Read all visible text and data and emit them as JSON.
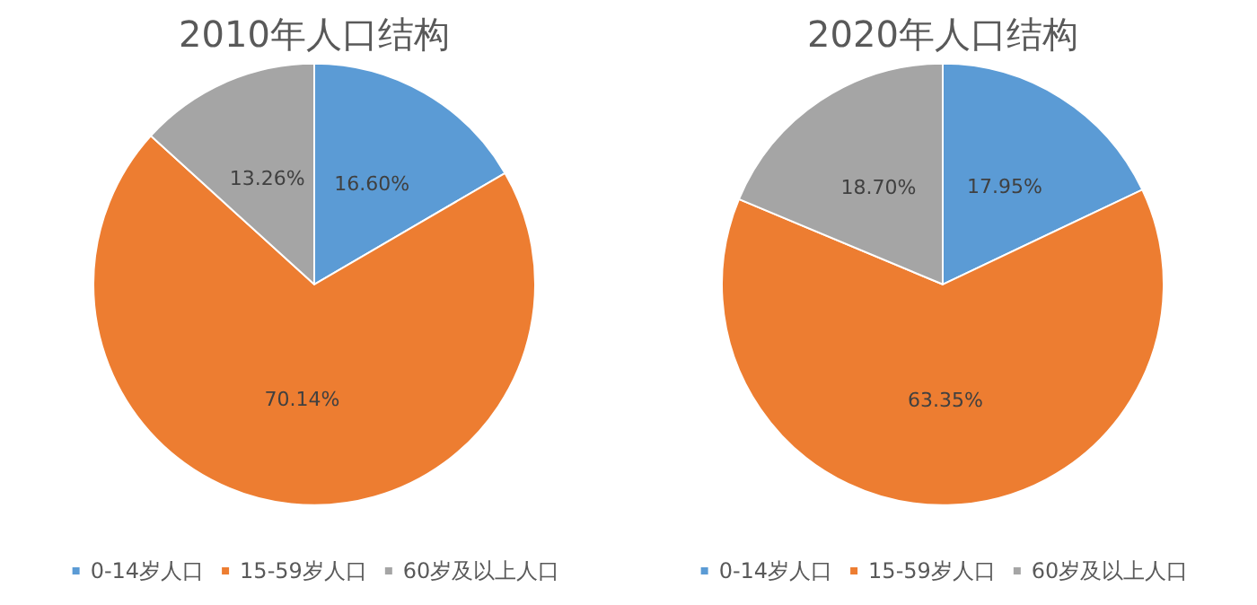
{
  "chart_data": [
    {
      "type": "pie",
      "title": "2010年人口结构",
      "categories": [
        "0-14岁人口",
        "15-59岁人口",
        "60岁及以上人口"
      ],
      "values": [
        16.6,
        70.14,
        13.26
      ],
      "value_labels": [
        "16.60%",
        "70.14%",
        "13.26%"
      ],
      "colors": [
        "#5b9bd5",
        "#ed7d31",
        "#a5a5a5"
      ],
      "legend": "bottom"
    },
    {
      "type": "pie",
      "title": "2020年人口结构",
      "categories": [
        "0-14岁人口",
        "15-59岁人口",
        "60岁及以上人口"
      ],
      "values": [
        17.95,
        63.35,
        18.7
      ],
      "value_labels": [
        "17.95%",
        "63.35%",
        "18.70%"
      ],
      "colors": [
        "#5b9bd5",
        "#ed7d31",
        "#a5a5a5"
      ],
      "legend": "bottom"
    }
  ]
}
